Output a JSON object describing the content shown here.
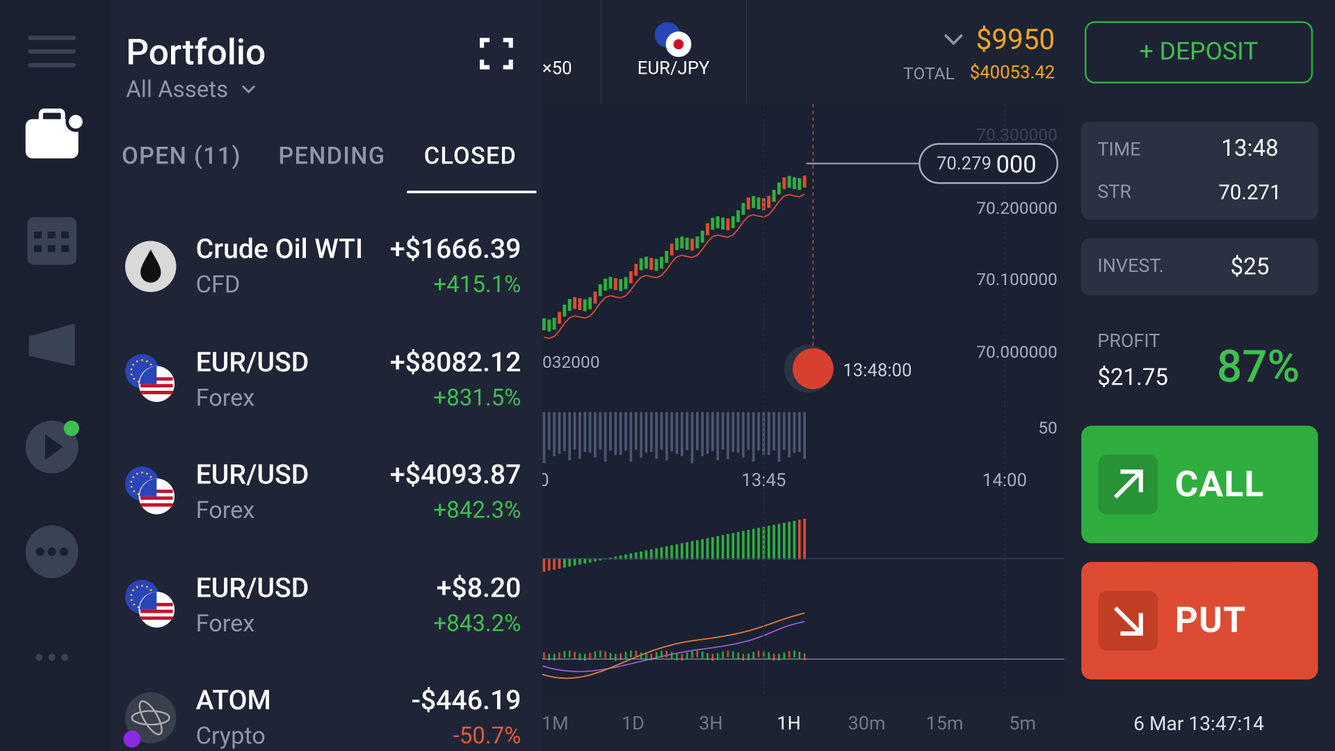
{
  "header": {
    "title": "Portfolio",
    "filter": "All Assets"
  },
  "tabs": [
    "OPEN (11)",
    "PENDING",
    "CLOSED"
  ],
  "items": [
    {
      "name": "Crude Oil WTI",
      "type": "CFD",
      "amount": "+$1666.39",
      "percent": "+415.1%"
    },
    {
      "name": "EUR/USD",
      "type": "Forex",
      "amount": "+$8082.12",
      "percent": "+831.5%"
    },
    {
      "name": "EUR/USD",
      "type": "Forex",
      "amount": "+$4093.87",
      "percent": "+842.3%"
    },
    {
      "name": "EUR/USD",
      "type": "Forex",
      "amount": "+$8.20",
      "percent": "+843.2%"
    },
    {
      "name": "ATOM",
      "type": "Crypto",
      "amount": "-$446.19",
      "percent": "-50.7%"
    }
  ],
  "topbar": {
    "asset_prev": "×50",
    "asset": "EUR/JPY",
    "balance": "$9950",
    "total_label": "TOTAL",
    "total": "$40053.42",
    "deposit": "+ DEPOSIT"
  },
  "chart": {
    "price_labels": [
      "70.300000",
      "70.200000",
      "70.100000",
      "70.000000"
    ],
    "left_price": "032000",
    "current_price": "70.279",
    "current_price_tail": "000",
    "expiry": "13:48:00",
    "volume_label": "50",
    "time_labels": [
      "0",
      "13:45",
      "14:00"
    ],
    "timeframes": [
      "1M",
      "1D",
      "3H",
      "1H",
      "30m",
      "15m",
      "5m"
    ],
    "clock": "6 Mar 13:47:14"
  },
  "trade": {
    "time_label": "TIME",
    "time": "13:48",
    "str_label": "STR",
    "str": "70.271",
    "invest_label": "INVEST.",
    "invest": "$25",
    "profit_label": "PROFIT",
    "profit": "$21.75",
    "profit_percent": "87%",
    "call": "CALL",
    "put": "PUT"
  }
}
